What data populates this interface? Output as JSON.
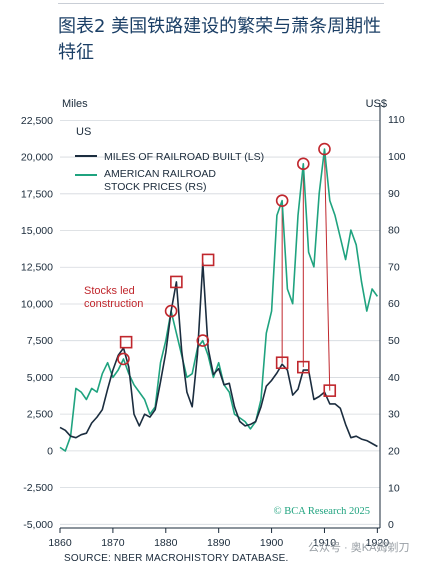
{
  "title": "图表2 美国铁路建设的繁荣与萧条周期性特征",
  "source": "SOURCE: NBER MACROHISTORY DATABASE.",
  "watermark": "公众号 · 奥KA姆剃刀",
  "chart_data": {
    "type": "line",
    "country_label": "US",
    "left_axis": {
      "unit": "Miles",
      "ticks": [
        "22,500",
        "20,000",
        "17,500",
        "15,000",
        "12,500",
        "10,000",
        "7,500",
        "5,000",
        "2,500",
        "0",
        "-2,500",
        "-5,000"
      ],
      "tick_values": [
        22500,
        20000,
        17500,
        15000,
        12500,
        10000,
        7500,
        5000,
        2500,
        0,
        -2500,
        -5000
      ],
      "ylim": [
        -5250,
        23000
      ]
    },
    "right_axis": {
      "unit": "US$",
      "ticks": [
        "110",
        "100",
        "90",
        "80",
        "70",
        "60",
        "50",
        "40",
        "30",
        "20",
        "10",
        "0"
      ],
      "tick_values": [
        110,
        100,
        90,
        80,
        70,
        60,
        50,
        40,
        30,
        20,
        10,
        0
      ],
      "ylim": [
        -0.9,
        111.8
      ]
    },
    "x_axis": {
      "ticks": [
        "1860",
        "1870",
        "1880",
        "1890",
        "1900",
        "1910",
        "1920"
      ],
      "tick_values": [
        1860,
        1870,
        1880,
        1890,
        1900,
        1910,
        1920
      ],
      "xlim": [
        1860,
        1920.5
      ]
    },
    "annotation": "Stocks led construction",
    "credit": "© BCA Research 2025",
    "colors": {
      "miles": "#1b2d3f",
      "stocks": "#1fa37f",
      "markers": "#c0272d",
      "text": "#1b3f66"
    },
    "series": [
      {
        "name": "MILES OF RAILROAD BUILT (LS)",
        "axis": "left",
        "x": [
          1860,
          1861,
          1862,
          1863,
          1864,
          1865,
          1866,
          1867,
          1868,
          1869,
          1870,
          1871,
          1872,
          1873,
          1874,
          1875,
          1876,
          1877,
          1878,
          1879,
          1880,
          1881,
          1882,
          1883,
          1884,
          1885,
          1886,
          1887,
          1888,
          1889,
          1890,
          1891,
          1892,
          1893,
          1894,
          1895,
          1896,
          1897,
          1898,
          1899,
          1900,
          1901,
          1902,
          1903,
          1904,
          1905,
          1906,
          1907,
          1908,
          1909,
          1910,
          1911,
          1912,
          1913,
          1914,
          1915,
          1916,
          1917,
          1918,
          1919,
          1920
        ],
        "values": [
          1600,
          1400,
          1000,
          900,
          1100,
          1200,
          1900,
          2300,
          2800,
          4200,
          5500,
          6500,
          7000,
          5700,
          2500,
          1700,
          2500,
          2300,
          2800,
          4700,
          6700,
          9500,
          11500,
          6800,
          4000,
          3000,
          6600,
          12800,
          7000,
          5200,
          5600,
          4500,
          4600,
          3000,
          2000,
          1700,
          1800,
          2000,
          3000,
          4400,
          4800,
          5300,
          5900,
          5500,
          3800,
          4200,
          5500,
          5500,
          3500,
          3700,
          4000,
          3200,
          3200,
          2900,
          1800,
          900,
          1000,
          800,
          700,
          500,
          300
        ]
      },
      {
        "name": "AMERICAN RAILROAD STOCK PRICES (RS)",
        "axis": "right",
        "x": [
          1860,
          1861,
          1862,
          1863,
          1864,
          1865,
          1866,
          1867,
          1868,
          1869,
          1870,
          1871,
          1872,
          1873,
          1874,
          1875,
          1876,
          1877,
          1878,
          1879,
          1880,
          1881,
          1882,
          1883,
          1884,
          1885,
          1886,
          1887,
          1888,
          1889,
          1890,
          1891,
          1892,
          1893,
          1894,
          1895,
          1896,
          1897,
          1898,
          1899,
          1900,
          1901,
          1902,
          1903,
          1904,
          1905,
          1906,
          1907,
          1908,
          1909,
          1910,
          1911,
          1912,
          1913,
          1914,
          1915,
          1916,
          1917,
          1918,
          1919,
          1920
        ],
        "values": [
          21,
          20,
          24,
          37,
          36,
          34,
          37,
          36,
          41,
          44,
          40,
          42,
          45,
          41,
          38,
          36,
          34,
          30,
          32,
          44,
          50,
          58,
          52,
          46,
          40,
          41,
          48,
          50,
          46,
          40,
          44,
          38,
          36,
          30,
          29,
          28,
          26,
          28,
          34,
          52,
          58,
          84,
          88,
          64,
          60,
          84,
          98,
          74,
          70,
          90,
          102,
          88,
          84,
          78,
          72,
          80,
          76,
          66,
          58,
          64,
          62
        ]
      }
    ],
    "markers": {
      "circles_on_stocks": [
        {
          "x": 1872,
          "y": 45
        },
        {
          "x": 1881,
          "y": 58
        },
        {
          "x": 1887,
          "y": 50
        },
        {
          "x": 1902,
          "y": 88
        },
        {
          "x": 1906,
          "y": 98
        },
        {
          "x": 1910,
          "y": 102
        }
      ],
      "squares_on_miles": [
        {
          "x": 1872.5,
          "y": 7400
        },
        {
          "x": 1882,
          "y": 11500
        },
        {
          "x": 1888,
          "y": 13000
        },
        {
          "x": 1902,
          "y": 6000
        },
        {
          "x": 1906,
          "y": 5700
        },
        {
          "x": 1911,
          "y": 4100
        }
      ]
    }
  }
}
